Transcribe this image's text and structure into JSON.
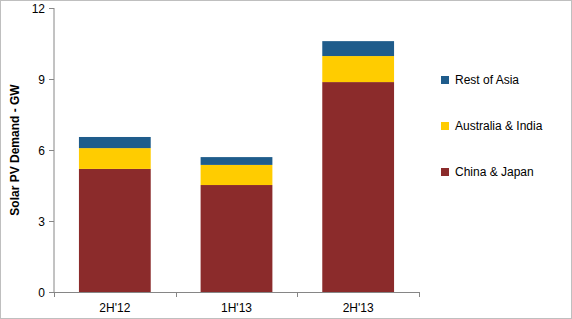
{
  "chart_data": {
    "type": "bar",
    "stacked": true,
    "grid": false,
    "legend": "right",
    "y_label": "Solar PV Demand - GW",
    "categories": [
      "2H'12",
      "1H'13",
      "2H'13"
    ],
    "series": [
      {
        "name": "China & Japan",
        "color": "#8b2b2b",
        "values": [
          5.2,
          4.52,
          8.87
        ]
      },
      {
        "name": "Australia & India",
        "color": "#ffcc00",
        "values": [
          0.88,
          0.85,
          1.1
        ]
      },
      {
        "name": "Rest of Asia",
        "color": "#1f5c8b",
        "values": [
          0.47,
          0.33,
          0.63
        ]
      }
    ],
    "ylim": [
      0,
      12
    ],
    "yticks": [
      0,
      3,
      6,
      9,
      12
    ]
  }
}
